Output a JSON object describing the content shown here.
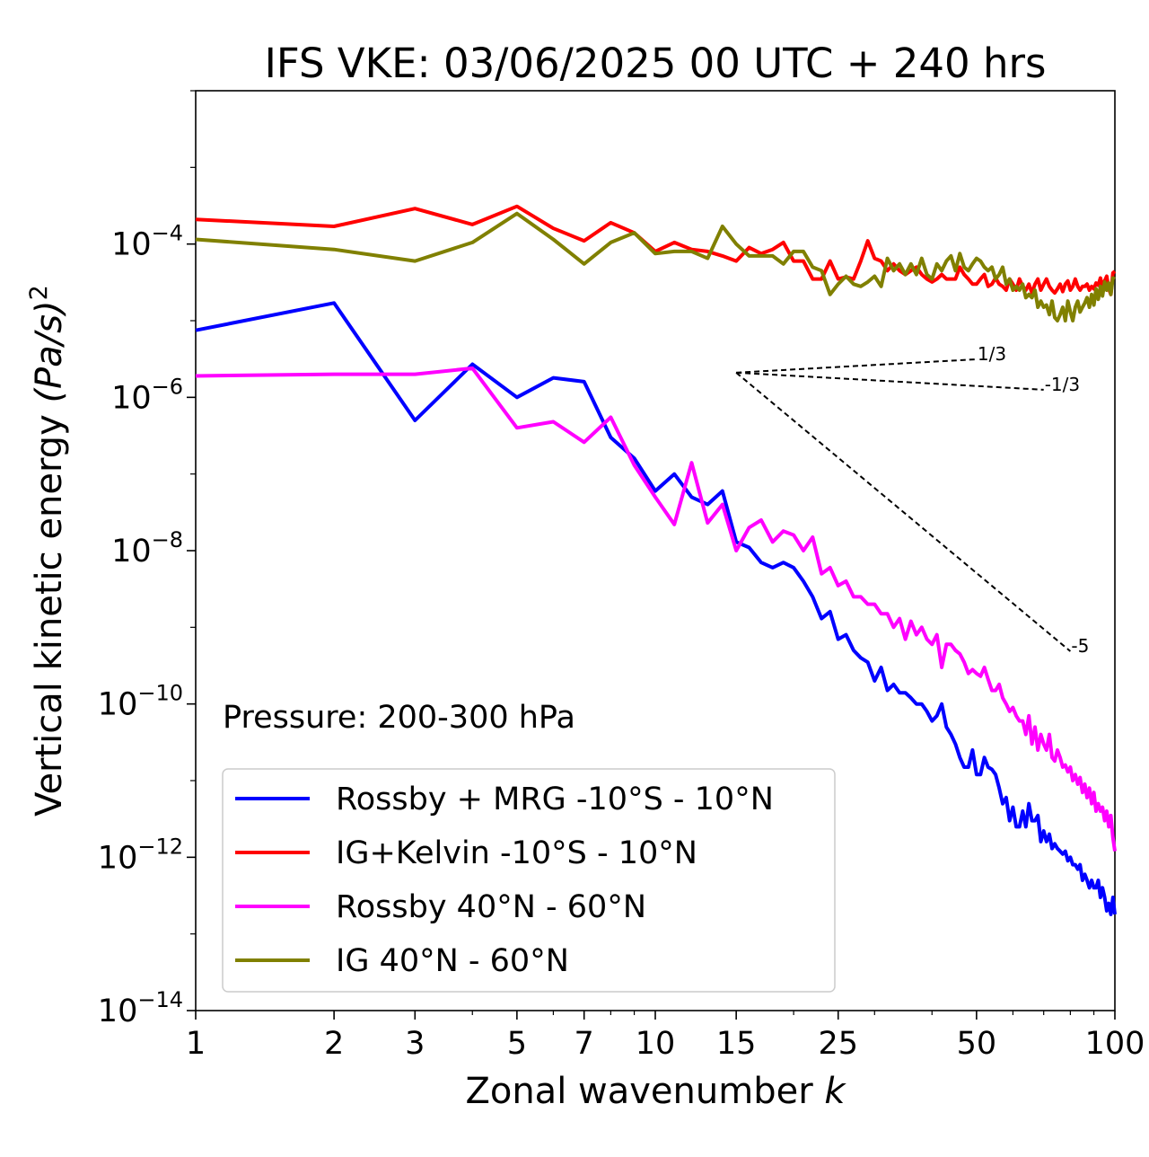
{
  "chart_data": {
    "type": "line",
    "title": "IFS VKE: 03/06/2025 00 UTC + 240 hrs",
    "xlabel": "Zonal wavenumber",
    "xlabel_var": "k",
    "ylabel": "Vertical kinetic energy",
    "ylabel_var": "(Pa/s)",
    "ylabel_exp": "2",
    "xscale": "log",
    "yscale": "log",
    "xlim": [
      1,
      100
    ],
    "ylim": [
      1e-14,
      0.01
    ],
    "grid": false,
    "legend_position": "lower-left",
    "annotation": "Pressure: 200-300 hPa",
    "xticks": [
      1,
      2,
      3,
      5,
      7,
      10,
      15,
      25,
      50,
      100
    ],
    "xtick_labels": [
      "1",
      "2",
      "3",
      "5",
      "7",
      "10",
      "15",
      "25",
      "50",
      "100"
    ],
    "yticks": [
      {
        "value": -4,
        "base": "10",
        "exp": "−4"
      },
      {
        "value": -6,
        "base": "10",
        "exp": "−6"
      },
      {
        "value": -8,
        "base": "10",
        "exp": "−8"
      },
      {
        "value": -10,
        "base": "10",
        "exp": "−10"
      },
      {
        "value": -12,
        "base": "10",
        "exp": "−12"
      },
      {
        "value": -14,
        "base": "10",
        "exp": "−14"
      }
    ],
    "reference_lines": [
      {
        "label": "1/3",
        "slope": 0.3333,
        "x0": 15,
        "y0": 2.1e-06,
        "x1": 50
      },
      {
        "label": "-1/3",
        "slope": -0.3333,
        "x0": 15,
        "y0": 2.1e-06,
        "x1": 70
      },
      {
        "label": "-5",
        "slope": -5,
        "x0": 15,
        "y0": 2.1e-06,
        "x1": 80
      }
    ],
    "series": [
      {
        "name": "Rossby + MRG -10°S - 10°N",
        "color": "#0000ff",
        "x": [
          1,
          2,
          3,
          4,
          5,
          6,
          7,
          8,
          9,
          10,
          11,
          12,
          13,
          14,
          15,
          16,
          17,
          18,
          19,
          20,
          21,
          22,
          23,
          24,
          25,
          26,
          27,
          28,
          29,
          30,
          31,
          32,
          33,
          34,
          35,
          36,
          37,
          38,
          39,
          40,
          41,
          42,
          43,
          44,
          45,
          46,
          47,
          48,
          49,
          50,
          51,
          52,
          53,
          54,
          55,
          56,
          57,
          58,
          59,
          60,
          61,
          62,
          63,
          64,
          65,
          66,
          67,
          68,
          69,
          70,
          71,
          72,
          73,
          74,
          75,
          76,
          77,
          78,
          79,
          80,
          81,
          82,
          83,
          84,
          85,
          86,
          87,
          88,
          89,
          90,
          91,
          92,
          93,
          94,
          95,
          96,
          97,
          98,
          99,
          100
        ],
        "y": [
          7.5e-06,
          1.7e-05,
          5e-07,
          2.7e-06,
          1e-06,
          1.8e-06,
          1.6e-06,
          3e-07,
          1.6e-07,
          6e-08,
          1e-07,
          5e-08,
          4e-08,
          6e-08,
          1.3e-08,
          1.1e-08,
          7e-09,
          6e-09,
          7e-09,
          6e-09,
          4e-09,
          2.5e-09,
          1.3e-09,
          1.6e-09,
          7e-10,
          8e-10,
          5e-10,
          4e-10,
          3.5e-10,
          2e-10,
          3e-10,
          1.5e-10,
          1.8e-10,
          1.4e-10,
          1.4e-10,
          1.2e-10,
          1e-10,
          1e-10,
          8e-11,
          6e-11,
          7e-11,
          1e-10,
          5e-11,
          4e-11,
          3e-11,
          2e-11,
          1.5e-11,
          1.5e-11,
          2.5e-11,
          1.2e-11,
          1.2e-11,
          2e-11,
          1.5e-11,
          1.4e-11,
          1.2e-11,
          8e-12,
          5e-12,
          6e-12,
          3e-12,
          4.5e-12,
          2.5e-12,
          2.5e-12,
          4e-12,
          2.5e-12,
          5e-12,
          3e-12,
          3e-12,
          3.5e-12,
          1.6e-12,
          2.2e-12,
          1.6e-12,
          2e-12,
          1.3e-12,
          1.5e-12,
          1.3e-12,
          1.2e-12,
          1.1e-12,
          1.2e-12,
          9e-13,
          1e-12,
          8e-13,
          8e-13,
          7e-13,
          8e-13,
          5e-13,
          6e-13,
          5e-13,
          4e-13,
          5e-13,
          4e-13,
          4e-13,
          5e-13,
          3e-13,
          4e-13,
          3e-13,
          2e-13,
          2.5e-13,
          1.8e-13,
          3e-13,
          1.8e-13
        ]
      },
      {
        "name": "IG+Kelvin -10°S - 10°N",
        "color": "#ff0000",
        "x": [
          1,
          2,
          3,
          4,
          5,
          6,
          7,
          8,
          9,
          10,
          11,
          12,
          13,
          14,
          15,
          16,
          17,
          18,
          19,
          20,
          21,
          22,
          23,
          24,
          25,
          26,
          27,
          28,
          29,
          30,
          31,
          32,
          33,
          34,
          35,
          36,
          37,
          38,
          39,
          40,
          41,
          42,
          43,
          44,
          45,
          46,
          47,
          48,
          49,
          50,
          51,
          52,
          53,
          54,
          55,
          56,
          57,
          58,
          59,
          60,
          61,
          62,
          63,
          64,
          65,
          66,
          67,
          68,
          69,
          70,
          71,
          72,
          73,
          74,
          75,
          76,
          77,
          78,
          79,
          80,
          81,
          82,
          83,
          84,
          85,
          86,
          87,
          88,
          89,
          90,
          91,
          92,
          93,
          94,
          95,
          96,
          97,
          98,
          99,
          100
        ],
        "y": [
          0.00021,
          0.00017,
          0.00029,
          0.00018,
          0.00031,
          0.00016,
          0.00011,
          0.00019,
          0.00014,
          8e-05,
          0.000105,
          8.5e-05,
          8e-05,
          7e-05,
          6e-05,
          9e-05,
          7.5e-05,
          8.5e-05,
          0.000105,
          6e-05,
          6e-05,
          3.5e-05,
          3.5e-05,
          6e-05,
          3.5e-05,
          3.7e-05,
          3.5e-05,
          6e-05,
          0.00011,
          6.5e-05,
          6e-05,
          4.5e-05,
          5.5e-05,
          4.5e-05,
          4e-05,
          4.5e-05,
          5e-05,
          4e-05,
          3.5e-05,
          3.2e-05,
          3.5e-05,
          4e-05,
          3.5e-05,
          3.5e-05,
          3.5e-05,
          5e-05,
          4e-05,
          3.5e-05,
          3e-05,
          3e-05,
          3.5e-05,
          4e-05,
          2.8e-05,
          3e-05,
          3.6e-05,
          3e-05,
          2.8e-05,
          2.5e-05,
          3.5e-05,
          3e-05,
          2.5e-05,
          3.5e-05,
          2.8e-05,
          2.5e-05,
          3e-05,
          2.3e-05,
          3e-05,
          3.5e-05,
          2.5e-05,
          3e-05,
          3.5e-05,
          2.8e-05,
          2.5e-05,
          2.3e-05,
          2.6e-05,
          3e-05,
          2.4e-05,
          3e-05,
          3.3e-05,
          2.5e-05,
          2.8e-05,
          3.5e-05,
          2.8e-05,
          2.5e-05,
          2.8e-05,
          2.8e-05,
          3e-05,
          2.5e-05,
          2.8e-05,
          2.6e-05,
          3.1e-05,
          2.9e-05,
          3.6e-05,
          2.8e-05,
          3.3e-05,
          3.8e-05,
          2.6e-05,
          2.2e-05,
          4.2e-05,
          4.4e-05
        ]
      },
      {
        "name": "Rossby 40°N - 60°N",
        "color": "#ff00ff",
        "x": [
          1,
          2,
          3,
          4,
          5,
          6,
          7,
          8,
          9,
          10,
          11,
          12,
          13,
          14,
          15,
          16,
          17,
          18,
          19,
          20,
          21,
          22,
          23,
          24,
          25,
          26,
          27,
          28,
          29,
          30,
          31,
          32,
          33,
          34,
          35,
          36,
          37,
          38,
          39,
          40,
          41,
          42,
          43,
          44,
          45,
          46,
          47,
          48,
          49,
          50,
          51,
          52,
          53,
          54,
          55,
          56,
          57,
          58,
          59,
          60,
          61,
          62,
          63,
          64,
          65,
          66,
          67,
          68,
          69,
          70,
          71,
          72,
          73,
          74,
          75,
          76,
          77,
          78,
          79,
          80,
          81,
          82,
          83,
          84,
          85,
          86,
          87,
          88,
          89,
          90,
          91,
          92,
          93,
          94,
          95,
          96,
          97,
          98,
          99,
          100
        ],
        "y": [
          1.9e-06,
          2e-06,
          2e-06,
          2.4e-06,
          4e-07,
          4.8e-07,
          2.6e-07,
          5.5e-07,
          1.3e-07,
          5e-08,
          2.2e-08,
          1.4e-07,
          2.3e-08,
          4e-08,
          1e-08,
          2e-08,
          2.5e-08,
          1.3e-08,
          1.8e-08,
          1.6e-08,
          1e-08,
          1.5e-08,
          5e-09,
          6e-09,
          3.5e-09,
          4e-09,
          2.5e-09,
          2.5e-09,
          2e-09,
          2e-09,
          1.5e-09,
          1.5e-09,
          1e-09,
          1.3e-09,
          7e-10,
          1.2e-09,
          8e-10,
          1e-09,
          7e-10,
          6e-10,
          8e-10,
          3e-10,
          6e-10,
          6e-10,
          5e-10,
          4.5e-10,
          3.5e-10,
          2.5e-10,
          2.8e-10,
          2.5e-10,
          2.3e-10,
          3e-10,
          2.1e-10,
          1.5e-10,
          1.5e-10,
          1.8e-10,
          1.2e-10,
          1e-10,
          8e-11,
          9e-11,
          7e-11,
          6e-11,
          6e-11,
          4e-11,
          7e-11,
          3e-11,
          5e-11,
          2.5e-11,
          4e-11,
          3e-11,
          2.5e-11,
          4e-11,
          2e-11,
          1.8e-11,
          2.5e-11,
          2e-11,
          1.5e-11,
          1.6e-11,
          1.3e-11,
          1.5e-11,
          1e-11,
          1.2e-11,
          9e-12,
          1.1e-11,
          7e-12,
          9e-12,
          6e-12,
          8e-12,
          5e-12,
          7e-12,
          4e-12,
          5e-12,
          4e-12,
          4.5e-12,
          3e-12,
          4e-12,
          2.5e-12,
          3.5e-12,
          1.8e-12,
          1.2e-12
        ]
      },
      {
        "name": "IG 40°N - 60°N",
        "color": "#808000",
        "x": [
          1,
          2,
          3,
          4,
          5,
          6,
          7,
          8,
          9,
          10,
          11,
          12,
          13,
          14,
          15,
          16,
          17,
          18,
          19,
          20,
          21,
          22,
          23,
          24,
          25,
          26,
          27,
          28,
          29,
          30,
          31,
          32,
          33,
          34,
          35,
          36,
          37,
          38,
          39,
          40,
          41,
          42,
          43,
          44,
          45,
          46,
          47,
          48,
          49,
          50,
          51,
          52,
          53,
          54,
          55,
          56,
          57,
          58,
          59,
          60,
          61,
          62,
          63,
          64,
          65,
          66,
          67,
          68,
          69,
          70,
          71,
          72,
          73,
          74,
          75,
          76,
          77,
          78,
          79,
          80,
          81,
          82,
          83,
          84,
          85,
          86,
          87,
          88,
          89,
          90,
          91,
          92,
          93,
          94,
          95,
          96,
          97,
          98,
          99,
          100
        ],
        "y": [
          0.000115,
          8.5e-05,
          6e-05,
          0.000105,
          0.00025,
          0.000115,
          5.5e-05,
          0.000105,
          0.00014,
          7.5e-05,
          8e-05,
          8e-05,
          6.5e-05,
          0.00017,
          0.0001,
          7e-05,
          7e-05,
          7e-05,
          5.5e-05,
          8e-05,
          8e-05,
          5e-05,
          4.5e-05,
          2.2e-05,
          3e-05,
          3.8e-05,
          3e-05,
          2.8e-05,
          3.2e-05,
          3.8e-05,
          2.8e-05,
          6.5e-05,
          4.5e-05,
          5.5e-05,
          4e-05,
          5.5e-05,
          4e-05,
          6.5e-05,
          4e-05,
          3.5e-05,
          5.5e-05,
          4.5e-05,
          6e-05,
          7e-05,
          4.5e-05,
          7.5e-05,
          5e-05,
          4.5e-05,
          5.5e-05,
          6.5e-05,
          6e-05,
          5e-05,
          4.5e-05,
          5e-05,
          3.5e-05,
          4e-05,
          5e-05,
          3e-05,
          3.5e-05,
          2.5e-05,
          2.8e-05,
          2.5e-05,
          3e-05,
          2e-05,
          2.2e-05,
          2e-05,
          2.5e-05,
          1.5e-05,
          1.8e-05,
          1.5e-05,
          1.6e-05,
          1.2e-05,
          1.8e-05,
          1.1e-05,
          1e-05,
          1.2e-05,
          1.5e-05,
          1e-05,
          1.8e-05,
          1.3e-05,
          1e-05,
          1.5e-05,
          1.8e-05,
          1.3e-05,
          1.5e-05,
          1.7e-05,
          2e-05,
          1.5e-05,
          2.2e-05,
          1.6e-05,
          2.6e-05,
          1.9e-05,
          2.8e-05,
          2.1e-05,
          3.2e-05,
          2.5e-05,
          3.1e-05,
          2.2e-05,
          3.6e-05,
          3.5e-05
        ]
      }
    ]
  }
}
